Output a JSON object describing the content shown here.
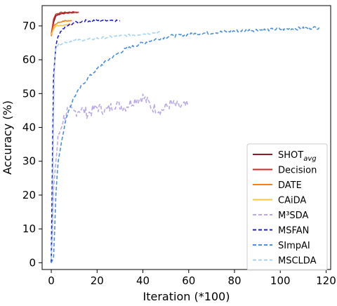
{
  "chart_data": {
    "type": "line",
    "xlabel": "Iteration (*100)",
    "ylabel": "Accuracy (%)",
    "xlim": [
      -4,
      122
    ],
    "ylim": [
      -2,
      76
    ],
    "xticks": [
      0,
      20,
      40,
      60,
      80,
      100,
      120
    ],
    "yticks": [
      0,
      10,
      20,
      30,
      40,
      50,
      60,
      70
    ],
    "grid": false,
    "legend_position": "lower-right",
    "series": [
      {
        "name": "SHOT",
        "name_sub": "avg",
        "color": "#8b1a2b",
        "style": "solid",
        "points": [
          [
            0,
            67
          ],
          [
            1,
            71
          ],
          [
            2,
            73
          ],
          [
            4,
            73.6
          ],
          [
            7,
            73.8
          ],
          [
            10,
            74
          ],
          [
            12,
            74
          ]
        ]
      },
      {
        "name": "Decision",
        "color": "#d62728",
        "style": "solid",
        "points": [
          [
            0,
            67.5
          ],
          [
            1,
            72
          ],
          [
            2,
            73.5
          ],
          [
            4,
            73.9
          ],
          [
            7,
            74
          ],
          [
            10,
            74.1
          ],
          [
            12,
            74
          ]
        ]
      },
      {
        "name": "DATE",
        "color": "#ff7f0e",
        "style": "solid",
        "points": [
          [
            0,
            67
          ],
          [
            1,
            70
          ],
          [
            3,
            71
          ],
          [
            6,
            71.5
          ],
          [
            9,
            71.5
          ]
        ]
      },
      {
        "name": "CAiDA",
        "color": "#f5c542",
        "style": "solid",
        "points": [
          [
            0,
            67.5
          ],
          [
            1,
            69
          ],
          [
            2,
            70
          ],
          [
            4,
            70.2
          ],
          [
            7,
            70.3
          ],
          [
            9,
            70.5
          ]
        ]
      },
      {
        "name": "M³SDA",
        "color": "#b9a7e8",
        "style": "dashed",
        "points": [
          [
            0,
            0
          ],
          [
            1,
            22
          ],
          [
            2,
            30
          ],
          [
            3,
            37
          ],
          [
            5,
            42
          ],
          [
            7,
            45
          ],
          [
            10,
            44.5
          ],
          [
            13,
            45.5
          ],
          [
            16,
            44
          ],
          [
            20,
            46
          ],
          [
            24,
            45
          ],
          [
            28,
            47
          ],
          [
            32,
            46
          ],
          [
            36,
            48
          ],
          [
            40,
            49
          ],
          [
            44,
            46
          ],
          [
            48,
            45
          ],
          [
            52,
            47
          ],
          [
            56,
            46
          ],
          [
            60,
            46.5
          ]
        ]
      },
      {
        "name": "MSFAN",
        "color": "#1f1fcf",
        "style": "dashed",
        "points": [
          [
            0,
            0
          ],
          [
            0.5,
            30
          ],
          [
            1,
            55
          ],
          [
            2,
            64
          ],
          [
            3,
            67
          ],
          [
            5,
            69
          ],
          [
            7,
            70
          ],
          [
            10,
            71
          ],
          [
            15,
            71.5
          ],
          [
            20,
            71.6
          ],
          [
            25,
            71.8
          ],
          [
            30,
            71.5
          ]
        ]
      },
      {
        "name": "SImpAI",
        "color": "#4a8fdc",
        "style": "dashed",
        "points": [
          [
            0,
            0
          ],
          [
            1,
            1.5
          ],
          [
            1.5,
            10
          ],
          [
            2,
            20
          ],
          [
            3,
            30
          ],
          [
            5,
            38
          ],
          [
            7,
            44
          ],
          [
            10,
            49
          ],
          [
            14,
            53
          ],
          [
            18,
            56
          ],
          [
            22,
            58.5
          ],
          [
            27,
            61
          ],
          [
            32,
            63
          ],
          [
            38,
            64.5
          ],
          [
            45,
            66
          ],
          [
            52,
            67
          ],
          [
            60,
            67.5
          ],
          [
            70,
            68
          ],
          [
            80,
            68.5
          ],
          [
            90,
            68.8
          ],
          [
            100,
            69
          ],
          [
            110,
            69.3
          ],
          [
            117,
            69.5
          ]
        ]
      },
      {
        "name": "MSCLDA",
        "color": "#a7d3f0",
        "style": "dashed",
        "points": [
          [
            0,
            1
          ],
          [
            0.5,
            10
          ],
          [
            1,
            45
          ],
          [
            1.5,
            60
          ],
          [
            2,
            63.5
          ],
          [
            3,
            64.5
          ],
          [
            5,
            65
          ],
          [
            8,
            65.5
          ],
          [
            12,
            65.8
          ],
          [
            16,
            66
          ],
          [
            20,
            66.3
          ],
          [
            25,
            66.7
          ],
          [
            30,
            67
          ],
          [
            35,
            67.3
          ],
          [
            40,
            67.6
          ],
          [
            45,
            68
          ],
          [
            48,
            68
          ]
        ]
      }
    ]
  }
}
